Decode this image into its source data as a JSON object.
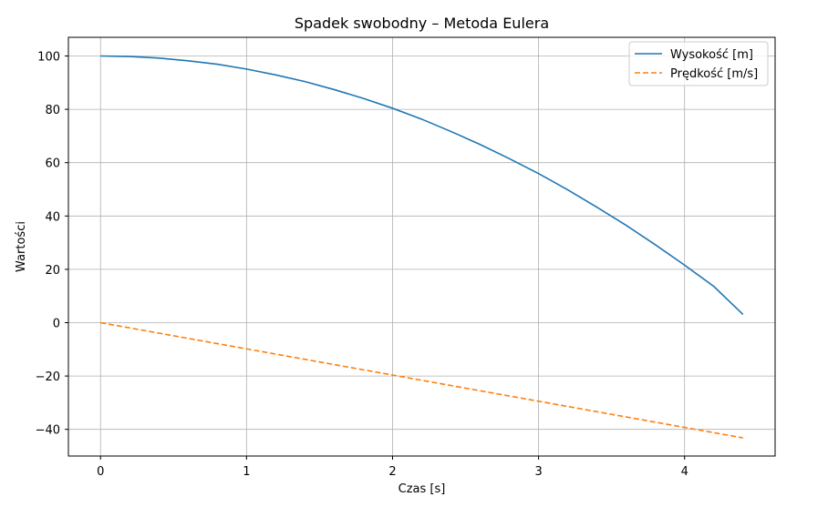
{
  "chart_data": {
    "type": "line",
    "title": "Spadek swobodny – Metoda Eulera",
    "xlabel": "Czas [s]",
    "ylabel": "Wartości",
    "xlim": [
      -0.22,
      4.62
    ],
    "ylim": [
      -50,
      107
    ],
    "xticks": [
      0,
      1,
      2,
      3,
      4
    ],
    "yticks": [
      -40,
      -20,
      0,
      20,
      40,
      60,
      80,
      100
    ],
    "grid": true,
    "legend_position": "top-right",
    "series": [
      {
        "name": "Wysokość [m]",
        "color": "#1f77b4",
        "style": "solid",
        "x": [
          0,
          0.2,
          0.4,
          0.6,
          0.8,
          1.0,
          1.2,
          1.4,
          1.6,
          1.8,
          2.0,
          2.2,
          2.4,
          2.6,
          2.8,
          3.0,
          3.2,
          3.4,
          3.6,
          3.8,
          4.0,
          4.2,
          4.4
        ],
        "y": [
          100,
          99.8,
          99.2,
          98.2,
          96.9,
          95.1,
          92.9,
          90.4,
          87.4,
          84.1,
          80.4,
          76.3,
          71.7,
          66.8,
          61.5,
          55.9,
          49.8,
          43.3,
          36.5,
          29.2,
          21.6,
          13.6,
          3.1
        ]
      },
      {
        "name": "Prędkość [m/s]",
        "color": "#ff7f0e",
        "style": "dashed",
        "x": [
          0,
          4.4
        ],
        "y": [
          0,
          -43.2
        ]
      }
    ]
  }
}
